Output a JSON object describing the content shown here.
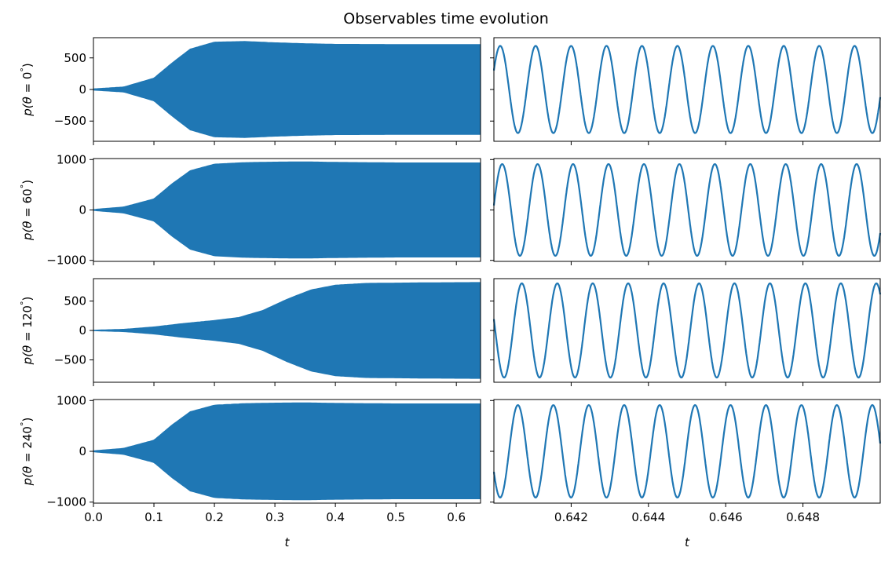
{
  "chart_data": {
    "type": "line",
    "title": "Observables time evolution",
    "series_color": "#1f77b4",
    "rows": [
      {
        "ylabel": "p(θ = 0°)",
        "ylabel_parts": [
          "p(",
          "θ",
          " = 0",
          "°",
          ")"
        ],
        "ylim": [
          -820,
          820
        ],
        "yticks": [
          -500,
          0,
          500
        ],
        "ytick_labels": [
          "−500",
          "0",
          "500"
        ],
        "envelope": [
          [
            0,
            10
          ],
          [
            0.05,
            40
          ],
          [
            0.1,
            180
          ],
          [
            0.13,
            420
          ],
          [
            0.16,
            640
          ],
          [
            0.2,
            750
          ],
          [
            0.25,
            760
          ],
          [
            0.3,
            740
          ],
          [
            0.35,
            725
          ],
          [
            0.4,
            715
          ],
          [
            0.5,
            712
          ],
          [
            0.64,
            712
          ]
        ],
        "zoom_amplitude": 690,
        "zoom_phase": 0.45
      },
      {
        "ylabel": "p(θ = 60°)",
        "ylabel_parts": [
          "p(",
          "θ",
          " = 60",
          "°",
          ")"
        ],
        "ylim": [
          -1020,
          1020
        ],
        "yticks": [
          -1000,
          0,
          1000
        ],
        "ytick_labels": [
          "−1000",
          "0",
          "1000"
        ],
        "envelope": [
          [
            0,
            10
          ],
          [
            0.05,
            60
          ],
          [
            0.1,
            220
          ],
          [
            0.13,
            520
          ],
          [
            0.16,
            780
          ],
          [
            0.2,
            910
          ],
          [
            0.25,
            940
          ],
          [
            0.3,
            950
          ],
          [
            0.35,
            955
          ],
          [
            0.4,
            945
          ],
          [
            0.5,
            935
          ],
          [
            0.64,
            935
          ]
        ],
        "zoom_amplitude": 910,
        "zoom_phase": 0.1
      },
      {
        "ylabel": "p(θ = 120°)",
        "ylabel_parts": [
          "p(",
          "θ",
          " = 120",
          "°",
          ")"
        ],
        "ylim": [
          -880,
          880
        ],
        "yticks": [
          -500,
          0,
          500
        ],
        "ytick_labels": [
          "−500",
          "0",
          "500"
        ],
        "envelope": [
          [
            0,
            5
          ],
          [
            0.05,
            20
          ],
          [
            0.1,
            60
          ],
          [
            0.15,
            120
          ],
          [
            0.2,
            170
          ],
          [
            0.24,
            220
          ],
          [
            0.28,
            340
          ],
          [
            0.32,
            530
          ],
          [
            0.36,
            690
          ],
          [
            0.4,
            770
          ],
          [
            0.45,
            800
          ],
          [
            0.55,
            810
          ],
          [
            0.64,
            815
          ]
        ],
        "zoom_amplitude": 800,
        "zoom_phase": 2.9
      },
      {
        "ylabel": "p(θ = 240°)",
        "ylabel_parts": [
          "p(",
          "θ",
          " = 240",
          "°",
          ")"
        ],
        "ylim": [
          -1020,
          1020
        ],
        "yticks": [
          -1000,
          0,
          1000
        ],
        "ytick_labels": [
          "−1000",
          "0",
          "1000"
        ],
        "envelope": [
          [
            0,
            10
          ],
          [
            0.05,
            60
          ],
          [
            0.1,
            220
          ],
          [
            0.13,
            520
          ],
          [
            0.16,
            780
          ],
          [
            0.2,
            910
          ],
          [
            0.25,
            940
          ],
          [
            0.3,
            950
          ],
          [
            0.35,
            955
          ],
          [
            0.4,
            945
          ],
          [
            0.5,
            935
          ],
          [
            0.64,
            935
          ]
        ],
        "zoom_amplitude": 910,
        "zoom_phase": 3.6
      }
    ],
    "left_column": {
      "xlabel": "t",
      "xlim": [
        0,
        0.64
      ],
      "xticks": [
        0.0,
        0.1,
        0.2,
        0.3,
        0.4,
        0.5,
        0.6
      ],
      "xtick_labels": [
        "0.0",
        "0.1",
        "0.2",
        "0.3",
        "0.4",
        "0.5",
        "0.6"
      ]
    },
    "right_column": {
      "xlabel": "t",
      "xlim": [
        0.64,
        0.65
      ],
      "xticks": [
        0.642,
        0.644,
        0.646,
        0.648
      ],
      "xtick_labels": [
        "0.642",
        "0.644",
        "0.646",
        "0.648"
      ],
      "oscillation_frequency_hz": 1090
    },
    "grid": false,
    "legend": "none"
  }
}
